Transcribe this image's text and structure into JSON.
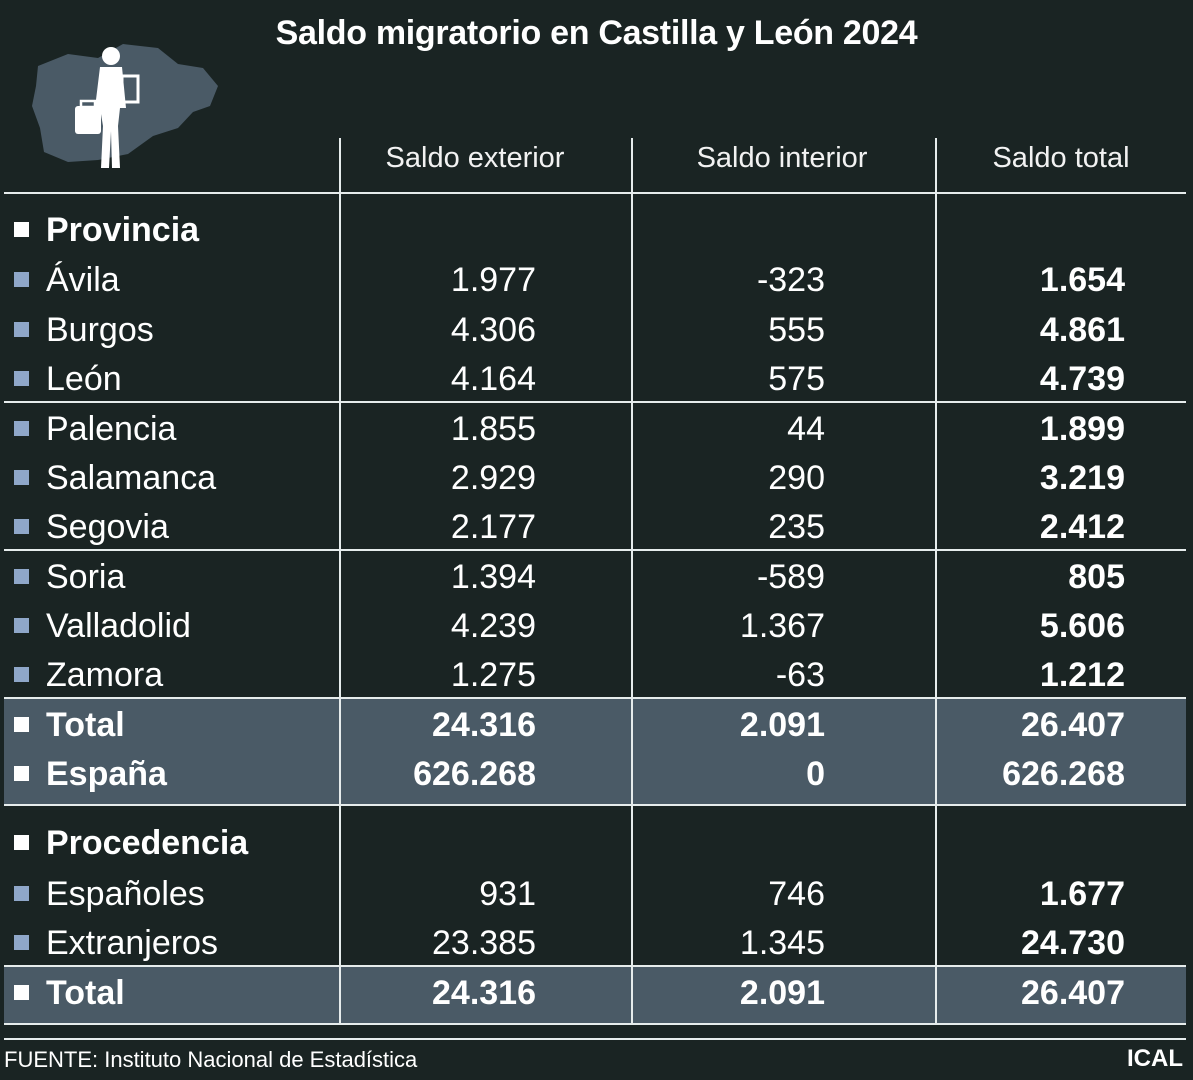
{
  "title": "Saldo migratorio en Castilla y León 2024",
  "colors": {
    "background": "#1a2423",
    "total_row_band": "#4a5a66",
    "row_bullet": "#8fa7c9",
    "section_bullet": "#ffffff",
    "map_silhouette": "#4a5a66"
  },
  "logo": {
    "icon": "migrant-with-suitcase-over-region-map-icon"
  },
  "columns": [
    "Saldo exterior",
    "Saldo interior",
    "Saldo total"
  ],
  "sections": [
    {
      "heading": "Provincia",
      "rows": [
        {
          "label": "Ávila",
          "values": [
            "1.977",
            "-323",
            "1.654"
          ]
        },
        {
          "label": "Burgos",
          "values": [
            "4.306",
            "555",
            "4.861"
          ]
        },
        {
          "label": "León",
          "values": [
            "4.164",
            "575",
            "4.739"
          ]
        },
        {
          "label": "Palencia",
          "values": [
            "1.855",
            "44",
            "1.899"
          ]
        },
        {
          "label": "Salamanca",
          "values": [
            "2.929",
            "290",
            "3.219"
          ]
        },
        {
          "label": "Segovia",
          "values": [
            "2.177",
            "235",
            "2.412"
          ]
        },
        {
          "label": "Soria",
          "values": [
            "1.394",
            "-589",
            "805"
          ]
        },
        {
          "label": "Valladolid",
          "values": [
            "4.239",
            "1.367",
            "5.606"
          ]
        },
        {
          "label": "Zamora",
          "values": [
            "1.275",
            "-63",
            "1.212"
          ]
        }
      ],
      "totals": [
        {
          "label": "Total",
          "values": [
            "24.316",
            "2.091",
            "26.407"
          ]
        },
        {
          "label": "España",
          "values": [
            "626.268",
            "0",
            "626.268"
          ]
        }
      ]
    },
    {
      "heading": "Procedencia",
      "rows": [
        {
          "label": "Españoles",
          "values": [
            "931",
            "746",
            "1.677"
          ]
        },
        {
          "label": "Extranjeros",
          "values": [
            "23.385",
            "1.345",
            "24.730"
          ]
        }
      ],
      "totals": [
        {
          "label": "Total",
          "values": [
            "24.316",
            "2.091",
            "26.407"
          ]
        }
      ]
    }
  ],
  "footer": {
    "source": "FUENTE: Instituto Nacional de Estadística",
    "credit": "ICAL"
  },
  "chart_data": {
    "type": "table",
    "title": "Saldo migratorio en Castilla y León 2024",
    "columns": [
      "Saldo exterior",
      "Saldo interior",
      "Saldo total"
    ],
    "groups": [
      {
        "name": "Provincia",
        "rows": [
          {
            "label": "Ávila",
            "values": [
              1977,
              -323,
              1654
            ]
          },
          {
            "label": "Burgos",
            "values": [
              4306,
              555,
              4861
            ]
          },
          {
            "label": "León",
            "values": [
              4164,
              575,
              4739
            ]
          },
          {
            "label": "Palencia",
            "values": [
              1855,
              44,
              1899
            ]
          },
          {
            "label": "Salamanca",
            "values": [
              2929,
              290,
              3219
            ]
          },
          {
            "label": "Segovia",
            "values": [
              2177,
              235,
              2412
            ]
          },
          {
            "label": "Soria",
            "values": [
              1394,
              -589,
              805
            ]
          },
          {
            "label": "Valladolid",
            "values": [
              4239,
              1367,
              5606
            ]
          },
          {
            "label": "Zamora",
            "values": [
              1275,
              -63,
              1212
            ]
          },
          {
            "label": "Total",
            "values": [
              24316,
              2091,
              26407
            ]
          },
          {
            "label": "España",
            "values": [
              626268,
              0,
              626268
            ]
          }
        ]
      },
      {
        "name": "Procedencia",
        "rows": [
          {
            "label": "Españoles",
            "values": [
              931,
              746,
              1677
            ]
          },
          {
            "label": "Extranjeros",
            "values": [
              23385,
              1345,
              24730
            ]
          },
          {
            "label": "Total",
            "values": [
              24316,
              2091,
              26407
            ]
          }
        ]
      }
    ]
  }
}
